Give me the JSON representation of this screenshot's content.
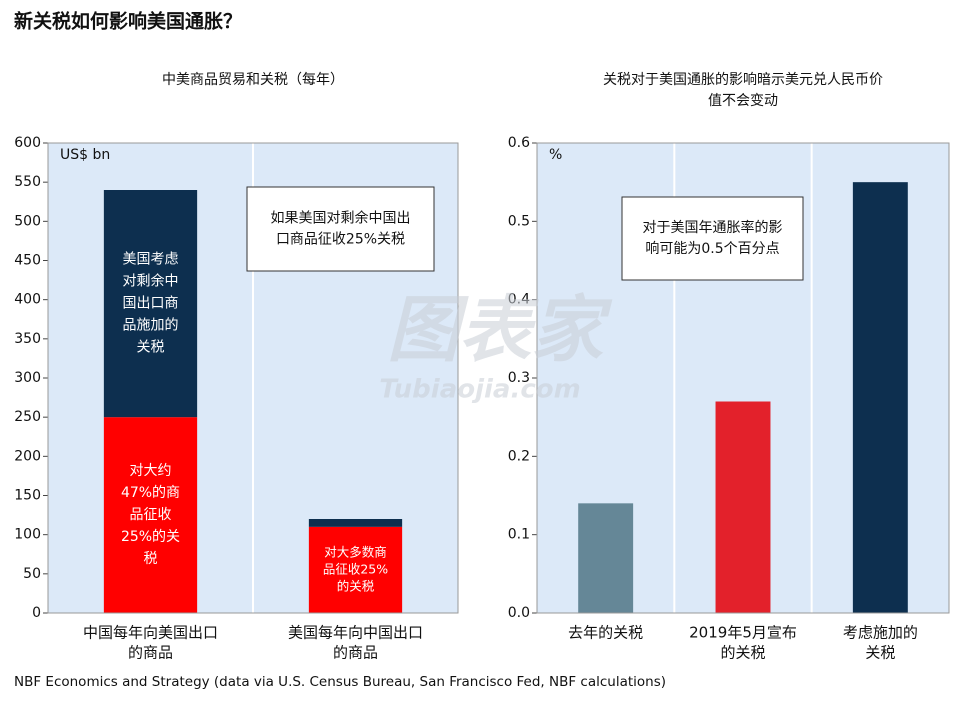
{
  "title": "新关税如何影响美国通胀？",
  "footer": "NBF Economics and Strategy (data via U.S. Census Bureau, San Francisco Fed, NBF calculations)",
  "watermark": [
    "图表家",
    "Tubiaojia.com"
  ],
  "chart_data": [
    {
      "type": "bar",
      "stacked": true,
      "title": [
        "中美商品贸易和关税（每年）"
      ],
      "unit": "US$ bn",
      "categories": [
        [
          "中国每年向美国出口",
          "的商品"
        ],
        [
          "美国每年向中国出口",
          "的商品"
        ]
      ],
      "series": [
        {
          "name": "对大约47%的商品征收25%的关税",
          "color": "#ff0000",
          "values": [
            250,
            110
          ],
          "texts": [
            [
              "对大约",
              "47%的商",
              "品征收",
              "25%的关",
              "税"
            ],
            [
              "对大多数商",
              "品征收25%",
              "的关税"
            ]
          ]
        },
        {
          "name": "美国考虑对剩余中国出口商品施加的关税",
          "color": "#0d2f4f",
          "values": [
            290,
            10
          ],
          "texts": [
            [
              "美国考虑",
              "对剩余中",
              "国出口商",
              "品施加的",
              "关税"
            ],
            null
          ]
        }
      ],
      "note": [
        "如果美国对剩余中国出",
        "口商品征收25%关税"
      ],
      "ylim": [
        0,
        600
      ],
      "yticks": [
        0,
        50,
        100,
        150,
        200,
        250,
        300,
        350,
        400,
        450,
        500,
        550,
        600
      ]
    },
    {
      "type": "bar",
      "title": [
        "关税对于美国通胀的影响暗示美元兑人民币价",
        "值不会变动"
      ],
      "unit": "%",
      "categories": [
        [
          "去年的关税"
        ],
        [
          "2019年5月宣布",
          "的关税"
        ],
        [
          "考虑施加的",
          "关税"
        ]
      ],
      "values": [
        0.14,
        0.27,
        0.55
      ],
      "colors": [
        "#658797",
        "#e3212b",
        "#0d2f4f"
      ],
      "note": [
        "对于美国年通胀率的影",
        "响可能为0.5个百分点"
      ],
      "ylim": [
        0,
        0.6
      ],
      "yticks": [
        {
          "value": 0,
          "label": "0.0"
        },
        0.1,
        0.2,
        0.3,
        0.4,
        0.5,
        0.6
      ]
    }
  ]
}
